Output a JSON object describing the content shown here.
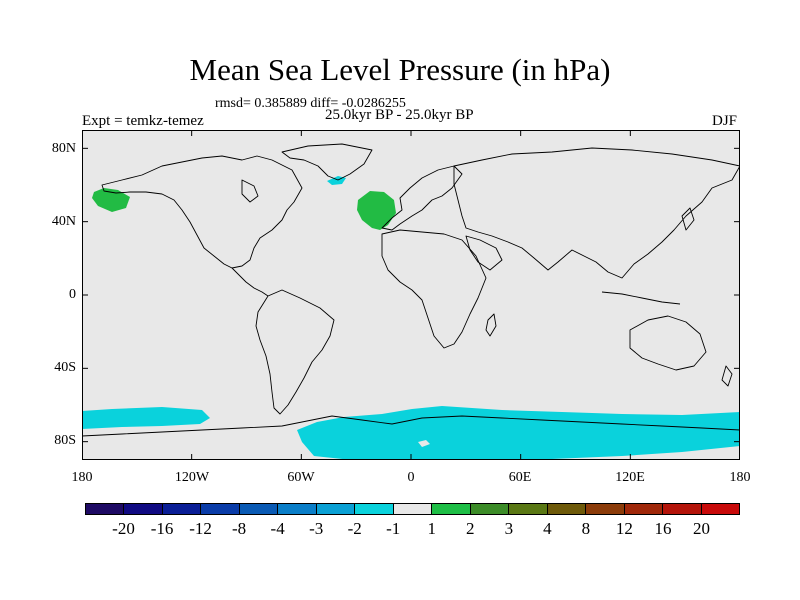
{
  "title": "Mean Sea Level Pressure (in hPa)",
  "stats": "rmsd= 0.385889 diff= -0.0286255",
  "period": "25.0kyr BP - 25.0kyr BP",
  "expt": "Expt = temkz-temez",
  "season": "DJF",
  "map": {
    "land_color": "#e8e8e8",
    "x_ticks": [
      "180",
      "120W",
      "60W",
      "0",
      "60E",
      "120E",
      "180"
    ],
    "x_tick_values": [
      -180,
      -120,
      -60,
      0,
      60,
      120,
      180
    ],
    "y_ticks": [
      "80N",
      "40N",
      "0",
      "40S",
      "80S"
    ],
    "y_tick_values": [
      80,
      40,
      0,
      -40,
      -80
    ],
    "lon_range": [
      -180,
      180
    ],
    "lat_range": [
      -90,
      90
    ]
  },
  "colorbar": {
    "colors": [
      "#1e0a64",
      "#100a82",
      "#0a1e96",
      "#0a3ca8",
      "#0a5ab4",
      "#0a7ec8",
      "#0aa0d4",
      "#0ad2dc",
      "#e8e8e8",
      "#1ebe46",
      "#3c8c28",
      "#5a7814",
      "#6e5a0a",
      "#8c3c0a",
      "#a0280a",
      "#b4140a",
      "#c80a0a"
    ],
    "labels": [
      "-20",
      "-16",
      "-12",
      "-8",
      "-4",
      "-3",
      "-2",
      "-1",
      "1",
      "2",
      "3",
      "4",
      "8",
      "12",
      "16",
      "20"
    ]
  },
  "anomalies": [
    {
      "name": "north-pacific-positive",
      "color": "#22bb44",
      "lon": -157,
      "lat": 54
    },
    {
      "name": "north-atlantic-positive",
      "color": "#22bb44",
      "lon": -17,
      "lat": 48
    },
    {
      "name": "greenland-negative",
      "color": "#0ad2dc",
      "lon": -38,
      "lat": 63
    },
    {
      "name": "antarctic-west-negative",
      "color": "#0ad2dc",
      "lon": -120,
      "lat": -72
    },
    {
      "name": "antarctic-east-negative",
      "color": "#0ad2dc",
      "lon": 60,
      "lat": -73
    }
  ]
}
